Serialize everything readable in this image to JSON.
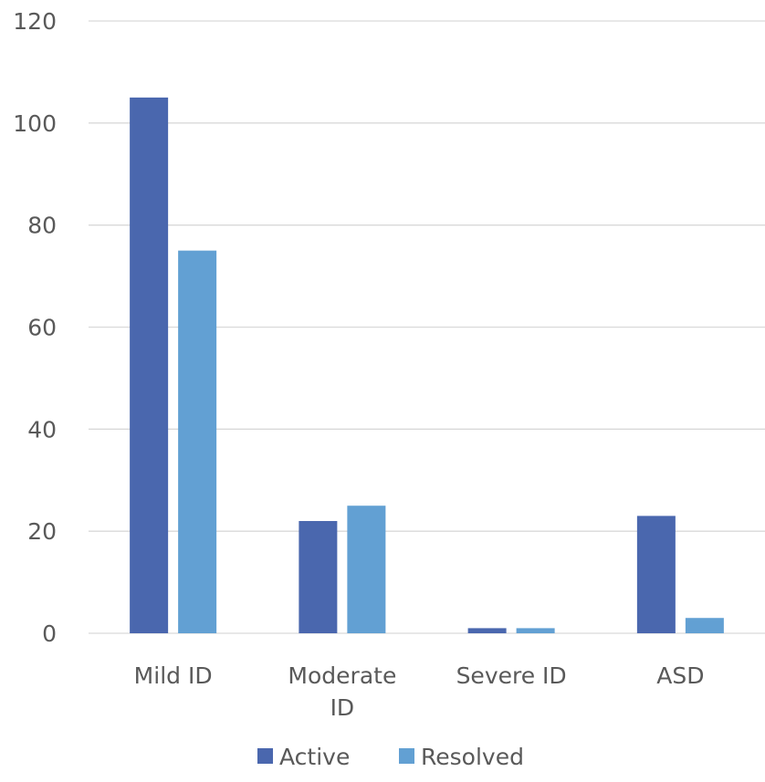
{
  "chart_data": {
    "type": "bar",
    "categories": [
      [
        "Mild ID"
      ],
      [
        "Moderate",
        "ID"
      ],
      [
        "Severe ID"
      ],
      [
        "ASD"
      ]
    ],
    "series": [
      {
        "name": "Active",
        "color": "#4a67ae",
        "values": [
          105,
          22,
          1,
          23
        ]
      },
      {
        "name": "Resolved",
        "color": "#62a0d3",
        "values": [
          75,
          25,
          1,
          3
        ]
      }
    ],
    "ylim": [
      0,
      120
    ],
    "yticks": [
      0,
      20,
      40,
      60,
      80,
      100,
      120
    ],
    "grid": true,
    "legend_position": "bottom"
  }
}
